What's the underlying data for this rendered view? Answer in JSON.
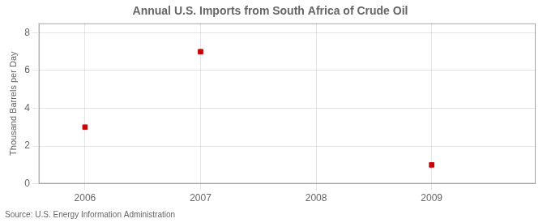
{
  "chart_data": {
    "type": "scatter",
    "title": "Annual U.S. Imports from South Africa of Crude Oil",
    "ylabel": "Thousand Barrels per Day",
    "annotation": "Source: U.S. Energy Information Administration",
    "x": [
      2006,
      2007,
      2009
    ],
    "values": [
      3,
      7,
      1
    ],
    "color": "#cc0000",
    "marker": "square",
    "xlim": [
      2005.6,
      2009.9
    ],
    "xticks": [
      2006,
      2007,
      2008,
      2009
    ],
    "ylim": [
      0,
      8.5
    ],
    "yticks": [
      0,
      2,
      4,
      6,
      8
    ],
    "grid": true
  }
}
